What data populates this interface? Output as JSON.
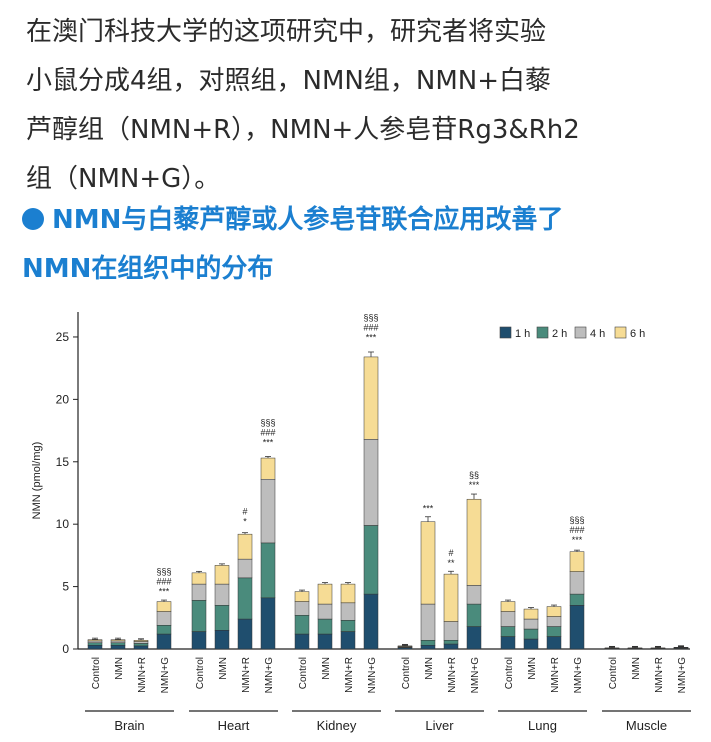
{
  "paragraph": {
    "lines": [
      "在澳门科技大学的这项研究中，研究者将实验",
      "小鼠分成4组，对照组，NMN组，NMN+白藜",
      "芦醇组（NMN+R），NMN+人参皂苷Rg3&Rh2",
      "组（NMN+G）。"
    ]
  },
  "heading": {
    "line1": "NMN与白藜芦醇或人参皂苷联合应用改善了",
    "line2": "NMN在组织中的分布"
  },
  "colors": {
    "1h": "#1f4e6e",
    "2h": "#4a8b7c",
    "4h": "#bdbdbd",
    "6h": "#f6dc95",
    "accent": "#1b7fd0"
  },
  "chart_data": {
    "type": "bar",
    "stacked": true,
    "ylabel": "NMN (pmol/mg)",
    "ylim": [
      0,
      27
    ],
    "yticks": [
      0,
      5,
      10,
      15,
      20,
      25
    ],
    "legend": {
      "placement": "top-right",
      "entries": [
        "1 h",
        "2 h",
        "4 h",
        "6 h"
      ]
    },
    "groups": [
      {
        "name": "Brain",
        "bars": [
          {
            "label": "Control",
            "values": [
              0.3,
              0.2,
              0.15,
              0.1
            ],
            "sig": []
          },
          {
            "label": "NMN",
            "values": [
              0.3,
              0.2,
              0.15,
              0.1
            ],
            "sig": []
          },
          {
            "label": "NMN+R",
            "values": [
              0.25,
              0.2,
              0.15,
              0.1
            ],
            "sig": []
          },
          {
            "label": "NMN+G",
            "values": [
              1.2,
              0.7,
              1.1,
              0.8
            ],
            "sig": [
              "§§§",
              "###",
              "***"
            ]
          }
        ]
      },
      {
        "name": "Heart",
        "bars": [
          {
            "label": "Control",
            "values": [
              1.4,
              2.5,
              1.3,
              0.9
            ],
            "sig": []
          },
          {
            "label": "NMN",
            "values": [
              1.5,
              2.0,
              1.7,
              1.5
            ],
            "sig": []
          },
          {
            "label": "NMN+R",
            "values": [
              2.4,
              3.3,
              1.5,
              2.0
            ],
            "sig": [
              "#",
              "*"
            ]
          },
          {
            "label": "NMN+G",
            "values": [
              4.1,
              4.4,
              5.1,
              1.7
            ],
            "sig": [
              "§§§",
              "###",
              "***"
            ]
          }
        ]
      },
      {
        "name": "Kidney",
        "bars": [
          {
            "label": "Control",
            "values": [
              1.2,
              1.5,
              1.1,
              0.8
            ],
            "sig": []
          },
          {
            "label": "NMN",
            "values": [
              1.2,
              1.2,
              1.2,
              1.6
            ],
            "sig": []
          },
          {
            "label": "NMN+R",
            "values": [
              1.4,
              0.9,
              1.4,
              1.5
            ],
            "sig": []
          },
          {
            "label": "NMN+G",
            "values": [
              4.4,
              5.5,
              6.9,
              6.6
            ],
            "sig": [
              "§§§",
              "###",
              "***"
            ]
          }
        ]
      },
      {
        "name": "Liver",
        "bars": [
          {
            "label": "Control",
            "values": [
              0.1,
              0.05,
              0.05,
              0.05
            ],
            "sig": []
          },
          {
            "label": "NMN",
            "values": [
              0.3,
              0.4,
              2.9,
              6.6
            ],
            "sig": [
              "***"
            ]
          },
          {
            "label": "NMN+R",
            "values": [
              0.4,
              0.3,
              1.5,
              3.8
            ],
            "sig": [
              "#",
              "**"
            ]
          },
          {
            "label": "NMN+G",
            "values": [
              1.8,
              1.8,
              1.5,
              6.9
            ],
            "sig": [
              "§§",
              "***"
            ]
          }
        ]
      },
      {
        "name": "Lung",
        "bars": [
          {
            "label": "Control",
            "values": [
              1.0,
              0.8,
              1.2,
              0.8
            ],
            "sig": []
          },
          {
            "label": "NMN",
            "values": [
              0.8,
              0.8,
              0.8,
              0.8
            ],
            "sig": []
          },
          {
            "label": "NMN+R",
            "values": [
              1.0,
              0.8,
              0.8,
              0.8
            ],
            "sig": []
          },
          {
            "label": "NMN+G",
            "values": [
              3.5,
              0.9,
              1.8,
              1.6
            ],
            "sig": [
              "§§§",
              "###",
              "***"
            ]
          }
        ]
      },
      {
        "name": "Muscle",
        "bars": [
          {
            "label": "Control",
            "values": [
              0.03,
              0.02,
              0.02,
              0.02
            ],
            "sig": []
          },
          {
            "label": "NMN",
            "values": [
              0.03,
              0.02,
              0.02,
              0.02
            ],
            "sig": []
          },
          {
            "label": "NMN+R",
            "values": [
              0.03,
              0.02,
              0.02,
              0.02
            ],
            "sig": []
          },
          {
            "label": "NMN+G",
            "values": [
              0.05,
              0.03,
              0.03,
              0.03
            ],
            "sig": []
          }
        ]
      }
    ]
  }
}
